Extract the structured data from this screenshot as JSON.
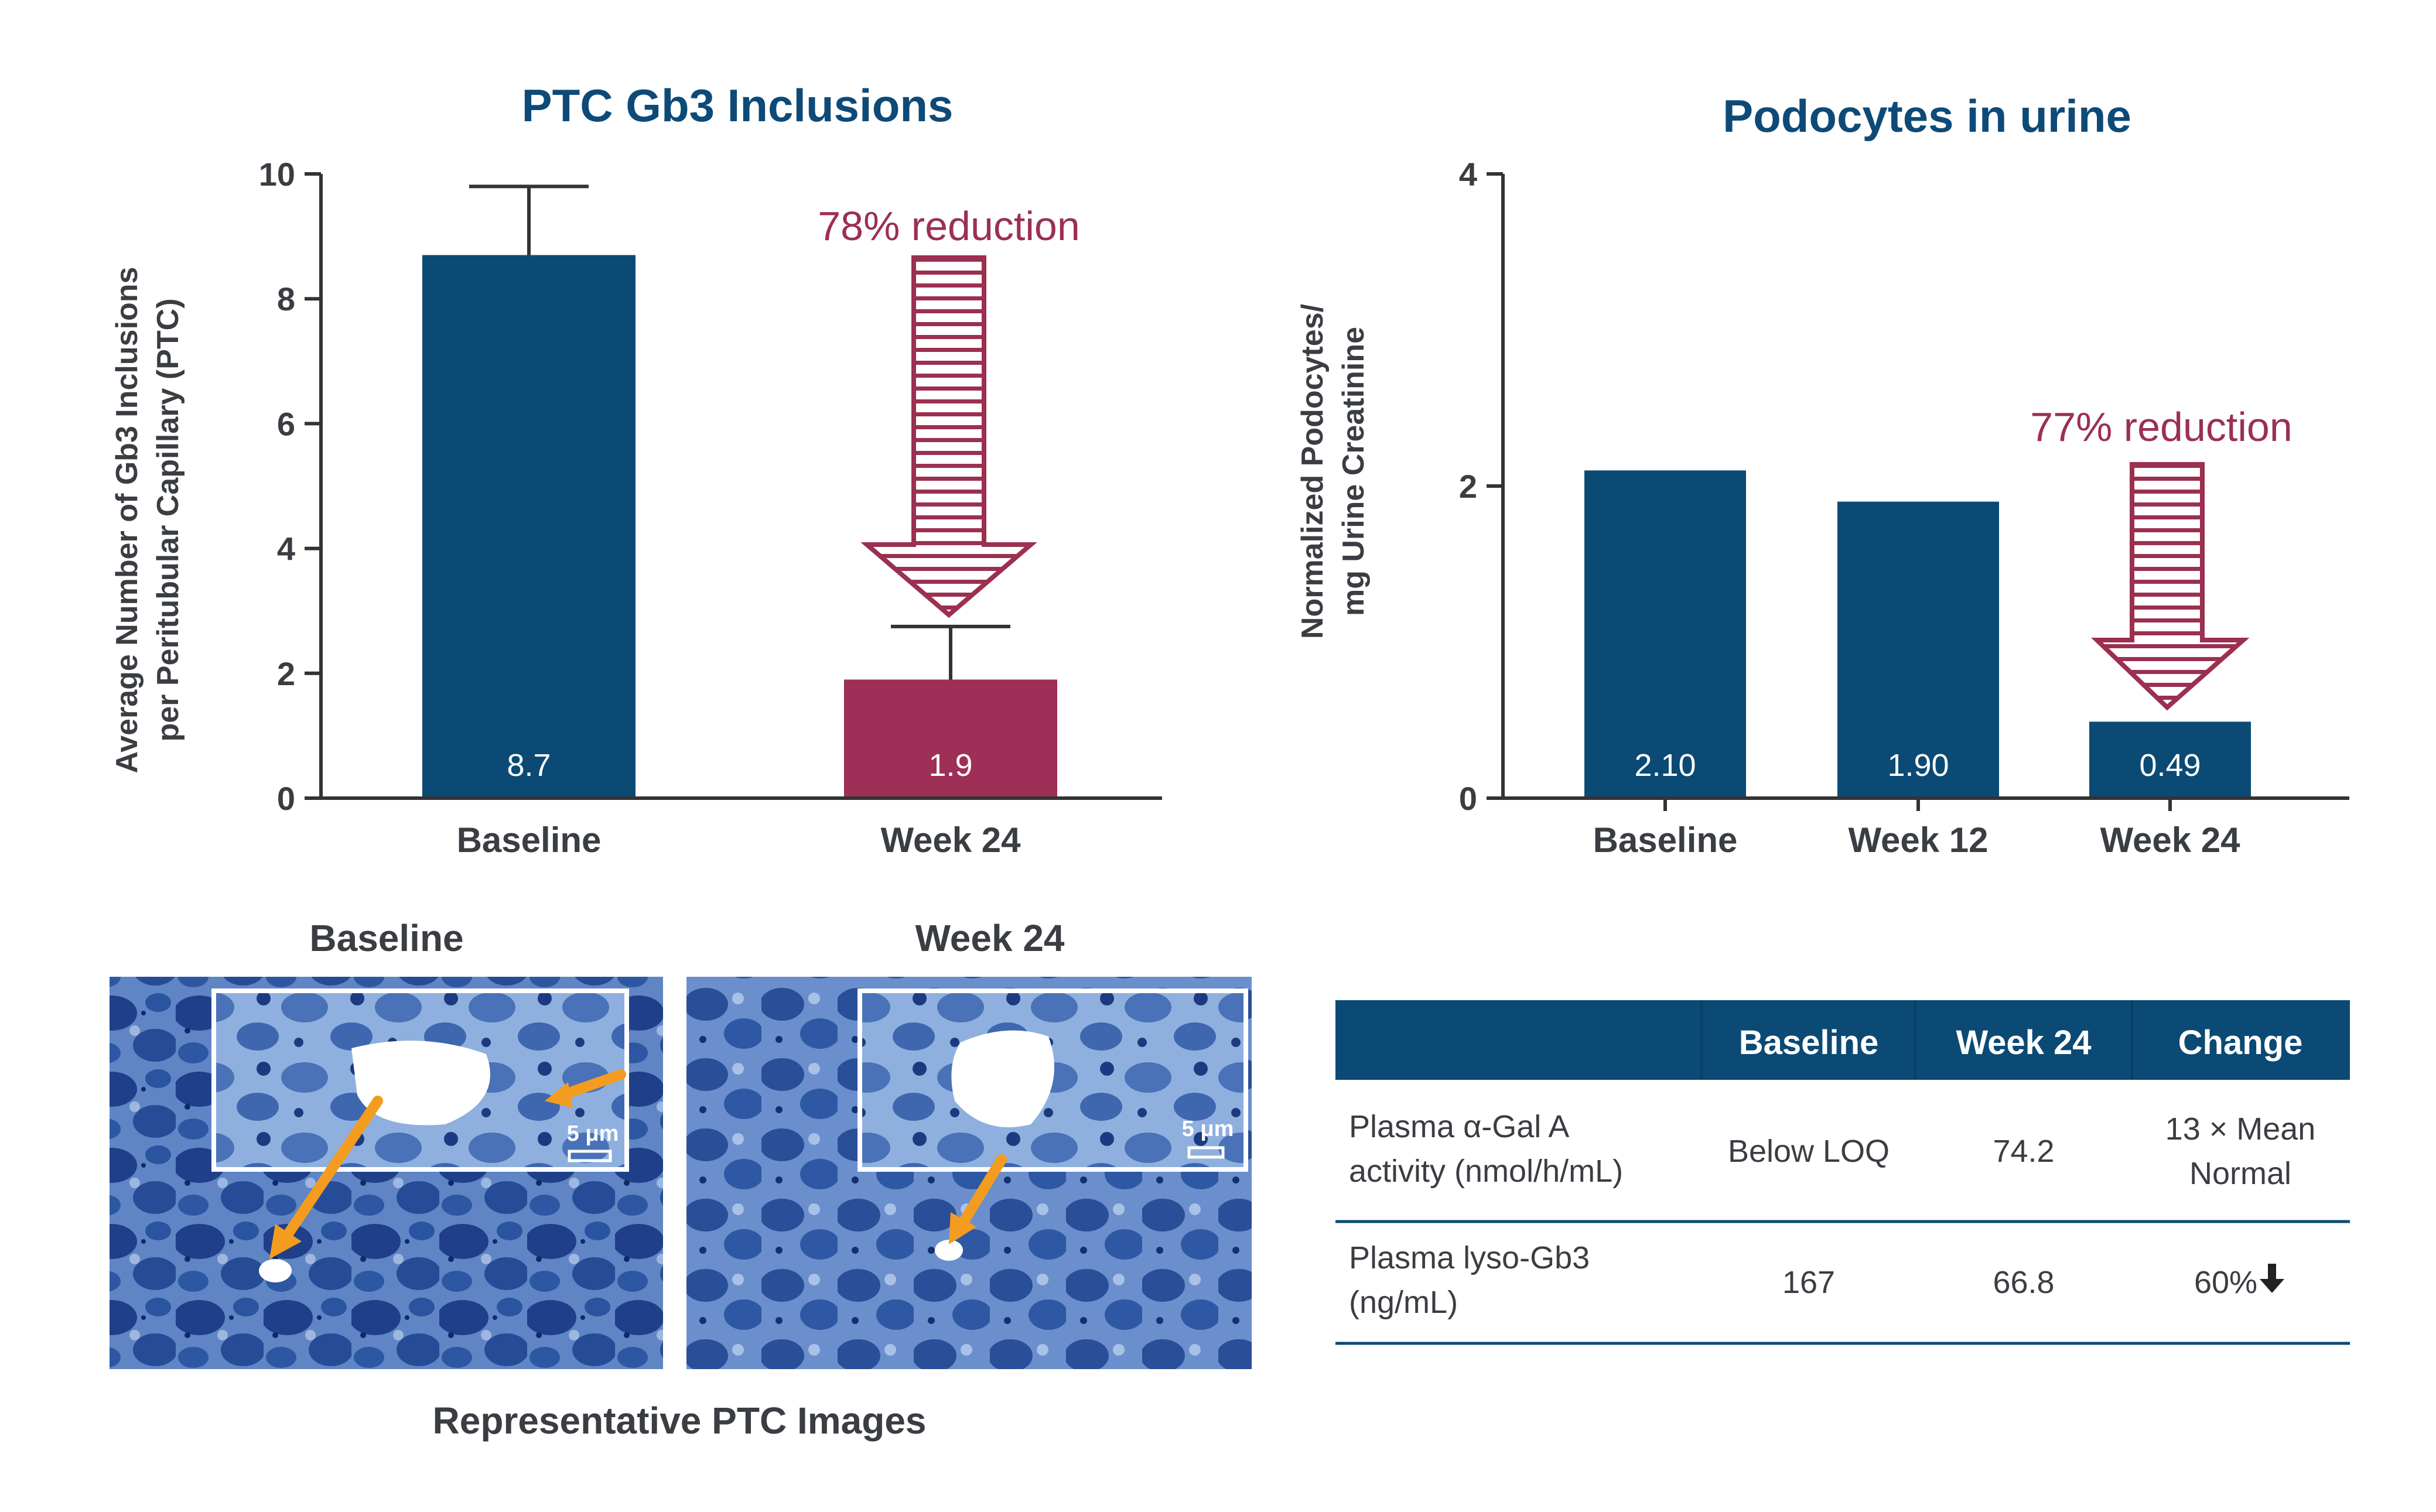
{
  "colors": {
    "navy": "#0b4a74",
    "crimson": "#9e2f57",
    "arrow": "#9b3050",
    "axis": "#333333",
    "micrograph": "#3d63a8",
    "pointer": "#f39c1f"
  },
  "chart_data": [
    {
      "type": "bar",
      "title": "PTC Gb3 Inclusions",
      "ylabel_line1": "Average Number of Gb3 Inclusions",
      "ylabel_line2": "per Peritubular Capillary (PTC)",
      "categories": [
        "Baseline",
        "Week 24"
      ],
      "values": [
        8.7,
        1.9
      ],
      "value_labels": [
        "8.7",
        "1.9"
      ],
      "error_upper": [
        9.8,
        2.75
      ],
      "ylim": [
        0,
        10
      ],
      "yticks": [
        "0",
        "2",
        "4",
        "6",
        "8",
        "10"
      ],
      "annotation": "78% reduction"
    },
    {
      "type": "bar",
      "title": "Podocytes in urine",
      "ylabel_line1": "Normalized Podocytes/",
      "ylabel_line2": "mg Urine Creatinine",
      "categories": [
        "Baseline",
        "Week 12",
        "Week 24"
      ],
      "values": [
        2.1,
        1.9,
        0.49
      ],
      "value_labels": [
        "2.10",
        "1.90",
        "0.49"
      ],
      "ylim": [
        0,
        4
      ],
      "yticks": [
        "0",
        "2",
        "4"
      ],
      "annotation": "77% reduction"
    }
  ],
  "images": {
    "baseline_label": "Baseline",
    "week24_label": "Week 24",
    "scale_label": "5 μm",
    "caption": "Representative PTC Images"
  },
  "table": {
    "headers": [
      "",
      "Baseline",
      "Week 24",
      "Change"
    ],
    "rows": [
      {
        "parameter": [
          "Plasma α-Gal A",
          "activity (nmol/h/mL)"
        ],
        "baseline": "Below LOQ",
        "week24": "74.2",
        "change": [
          "13 × Mean",
          "Normal"
        ]
      },
      {
        "parameter": [
          "Plasma lyso-Gb3",
          "(ng/mL)"
        ],
        "baseline": "167",
        "week24": "66.8",
        "change": [
          "60%"
        ],
        "change_icon": "down-arrow-icon"
      }
    ]
  }
}
